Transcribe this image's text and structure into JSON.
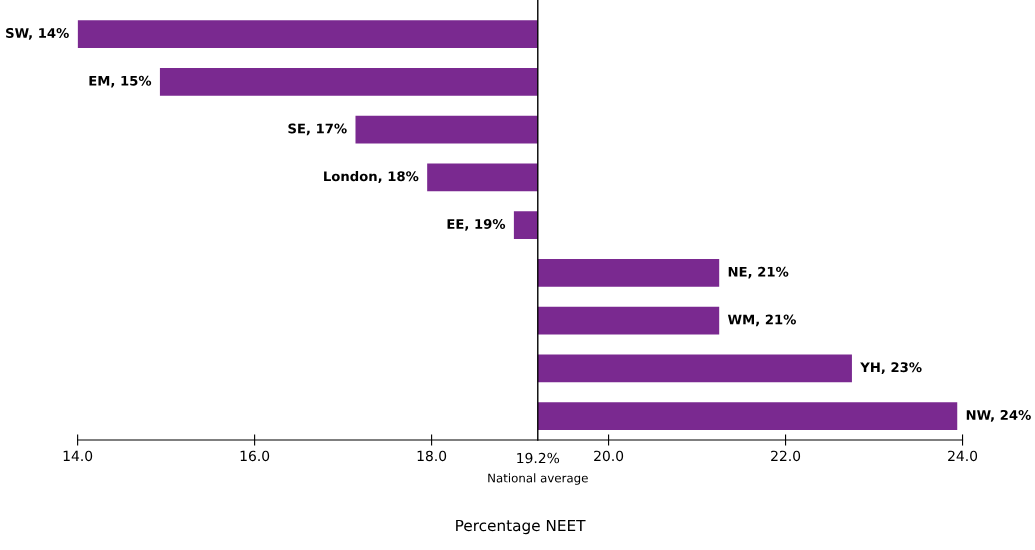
{
  "chart_data": {
    "type": "bar",
    "orientation": "horizontal",
    "xlabel": "Percentage NEET",
    "categories": [
      null,
      null,
      null,
      null,
      null,
      null,
      null,
      null,
      null
    ],
    "base": [
      19.2,
      19.2,
      19.2,
      19.2,
      19.2,
      19.2,
      19.2,
      19.2,
      19.2
    ],
    "values": [
      -5.2,
      -4.27,
      -2.06,
      -1.25,
      -0.27,
      2.05,
      2.05,
      3.55,
      4.74
    ],
    "value_labels": [
      "SW, 14%",
      "EM, 15%",
      "SE, 17%",
      "London, 18%",
      "EE, 19%",
      "NE, 21%",
      "WM, 21%",
      "YH, 23%",
      "NW, 24%"
    ],
    "color": "#7a2990",
    "xlim": [
      14,
      24
    ],
    "xticks": [
      {
        "value": 14,
        "label": "14.0"
      },
      {
        "value": 16,
        "label": "16.0"
      },
      {
        "value": 18,
        "label": "18.0"
      },
      {
        "value": 20,
        "label": "20.0"
      },
      {
        "value": 22,
        "label": "22.0"
      },
      {
        "value": 24,
        "label": "24.0"
      }
    ],
    "ref_lines": [
      {
        "axis": "x",
        "value": 19.2,
        "label": "19.2%",
        "color": "#000000"
      }
    ],
    "annotations": [
      "National average"
    ],
    "grid": false,
    "legend": false
  }
}
